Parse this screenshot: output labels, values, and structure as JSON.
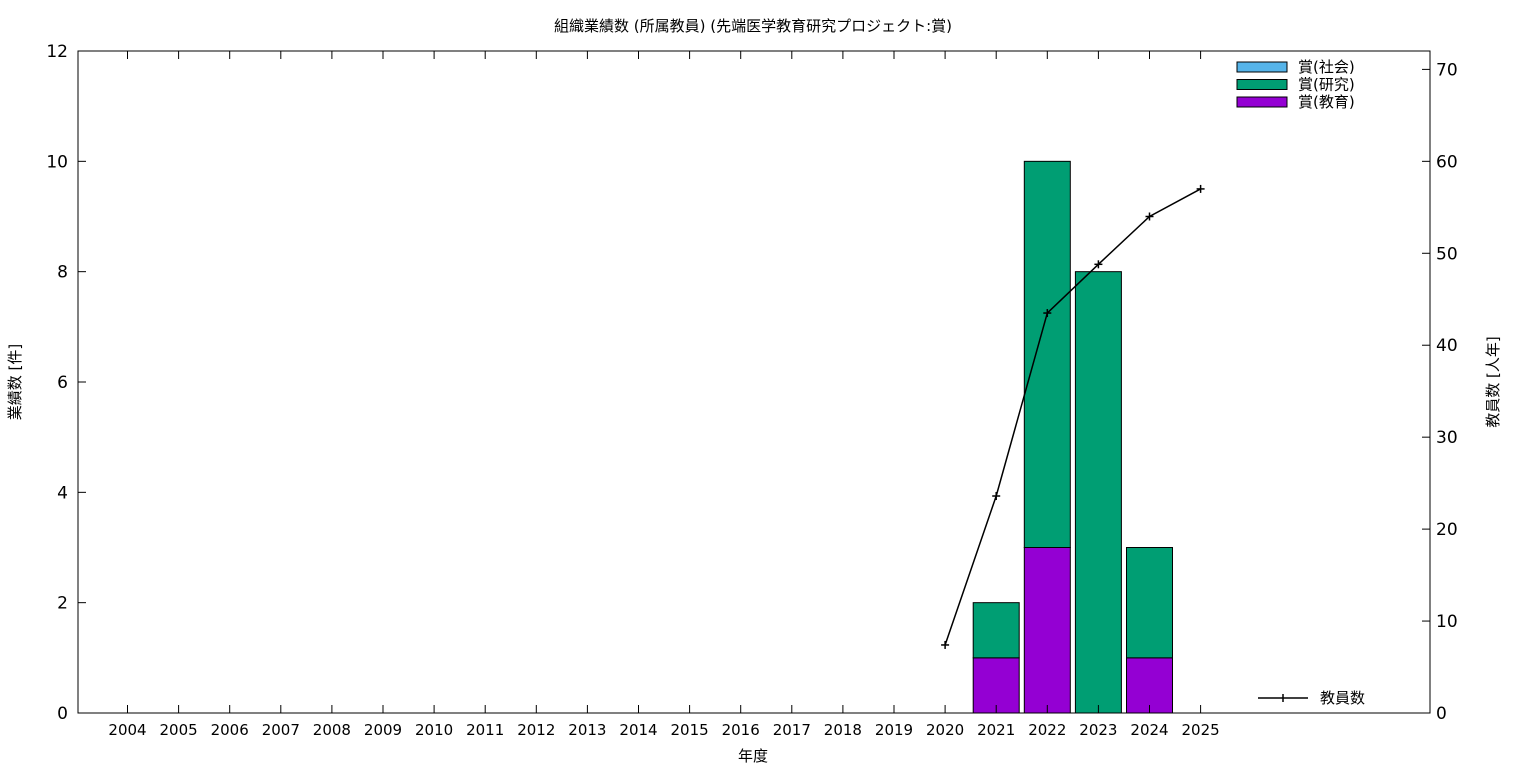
{
  "chart_data": {
    "type": "bar",
    "title": "組織業績数 (所属教員) (先端医学教育研究プロジェクト:賞)",
    "xlabel": "年度",
    "ylabel": "業績数 [件]",
    "y2label": "教員数 [人年]",
    "ylim": [
      0,
      12
    ],
    "y2lim": [
      0,
      72
    ],
    "yticks": [
      0,
      2,
      4,
      6,
      8,
      10,
      12
    ],
    "y2ticks": [
      0,
      10,
      20,
      30,
      40,
      50,
      60,
      70
    ],
    "grid": false,
    "stacked": true,
    "categories": [
      "2004",
      "2005",
      "2006",
      "2007",
      "2008",
      "2009",
      "2010",
      "2011",
      "2012",
      "2013",
      "2014",
      "2015",
      "2016",
      "2017",
      "2018",
      "2019",
      "2020",
      "2021",
      "2022",
      "2023",
      "2024",
      "2025"
    ],
    "series": [
      {
        "name": "賞(教育)",
        "color": "#9400d3",
        "values": [
          0,
          0,
          0,
          0,
          0,
          0,
          0,
          0,
          0,
          0,
          0,
          0,
          0,
          0,
          0,
          0,
          0,
          1,
          3,
          0,
          1,
          0
        ]
      },
      {
        "name": "賞(研究)",
        "color": "#009e73",
        "values": [
          0,
          0,
          0,
          0,
          0,
          0,
          0,
          0,
          0,
          0,
          0,
          0,
          0,
          0,
          0,
          0,
          0,
          1,
          7,
          8,
          2,
          0
        ]
      },
      {
        "name": "賞(社会)",
        "color": "#56b4e9",
        "values": [
          0,
          0,
          0,
          0,
          0,
          0,
          0,
          0,
          0,
          0,
          0,
          0,
          0,
          0,
          0,
          0,
          0,
          0,
          0,
          0,
          0,
          0
        ]
      }
    ],
    "legend_order": [
      "賞(社会)",
      "賞(研究)",
      "賞(教育)"
    ],
    "legend_position": "top-right",
    "line_series": {
      "name": "教員数",
      "axis": "right",
      "color": "#000000",
      "x": [
        "2020",
        "2021",
        "2022",
        "2023",
        "2024",
        "2025"
      ],
      "values": [
        7.4,
        23.6,
        43.5,
        48.8,
        54.0,
        57.0
      ],
      "legend_position": "bottom-right"
    }
  }
}
